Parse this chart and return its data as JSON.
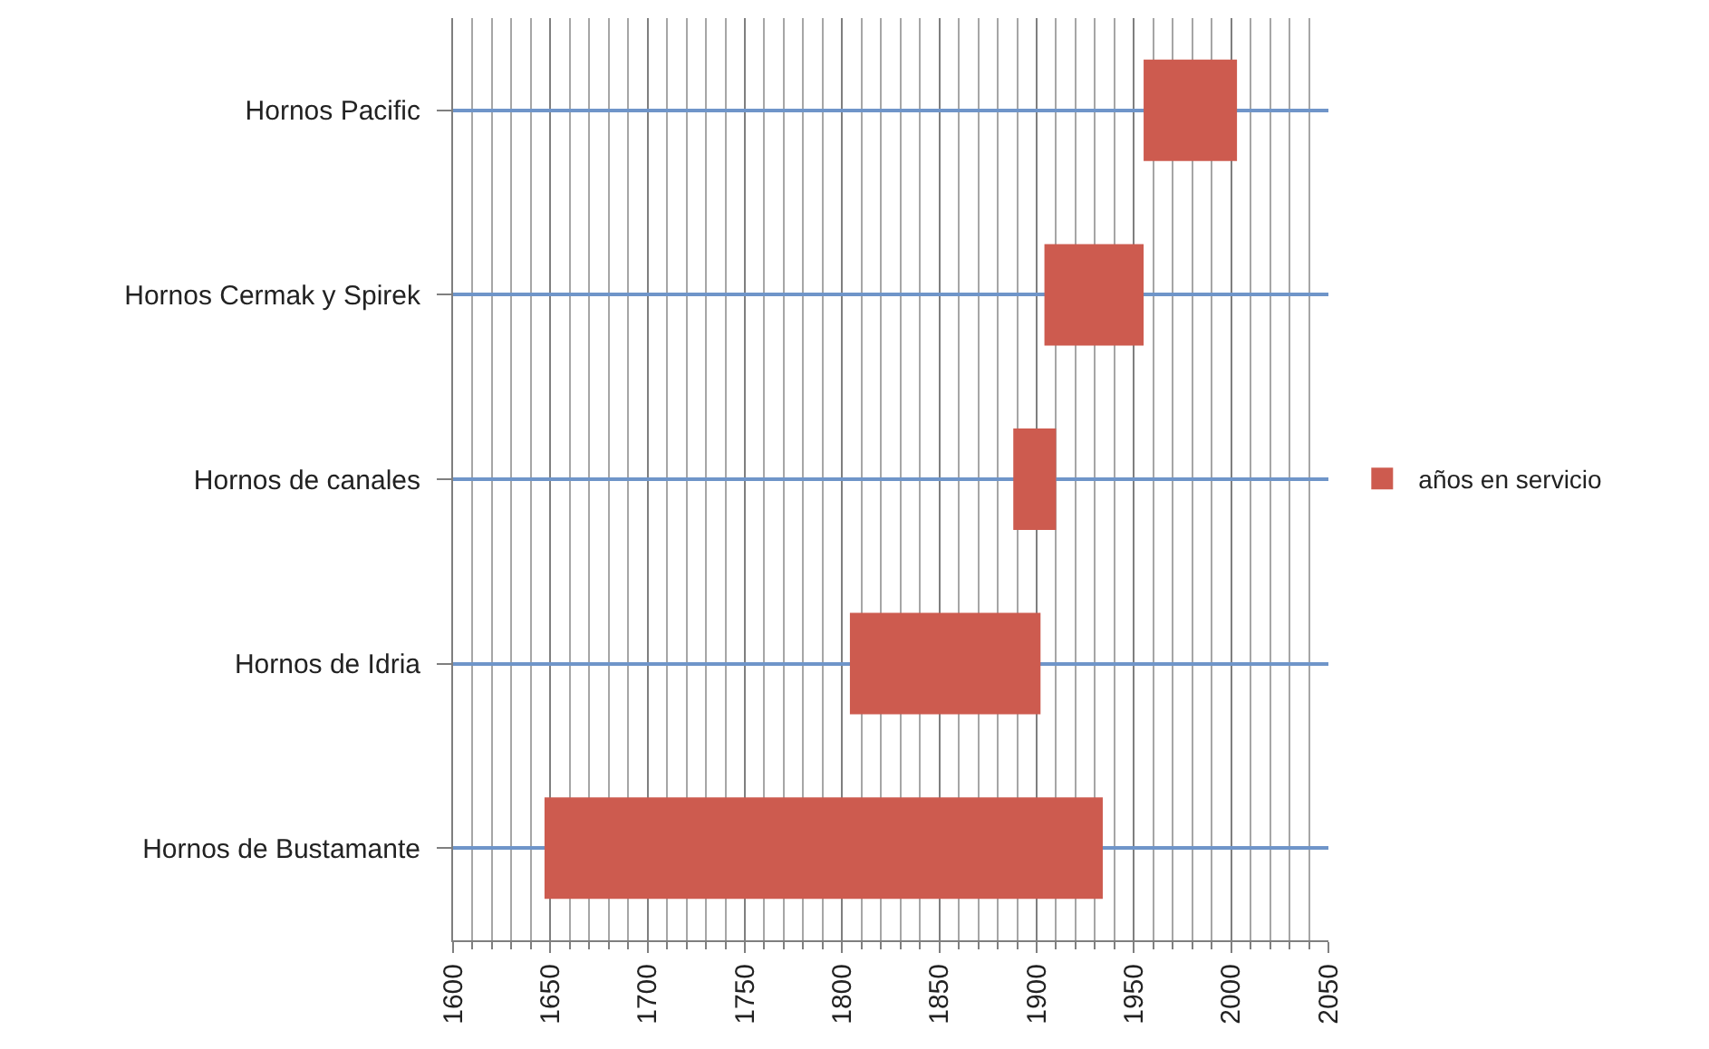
{
  "chart_data": {
    "type": "bar",
    "orientation": "horizontal",
    "categories": [
      "Hornos Pacific",
      "Hornos Cermak y Spirek",
      "Hornos de canales",
      "Hornos de Idria",
      "Hornos de Bustamante"
    ],
    "series": [
      {
        "name": "años en servicio",
        "color": "#cd5b4f",
        "values": [
          48,
          51,
          22,
          98,
          287
        ],
        "base": [
          1955,
          1904,
          1888,
          1804,
          1647
        ]
      }
    ],
    "xlim": [
      1600,
      2050
    ],
    "xticks": [
      1600,
      1650,
      1700,
      1750,
      1800,
      1850,
      1900,
      1950,
      2000,
      2050
    ],
    "grid": true,
    "legend": "right"
  }
}
